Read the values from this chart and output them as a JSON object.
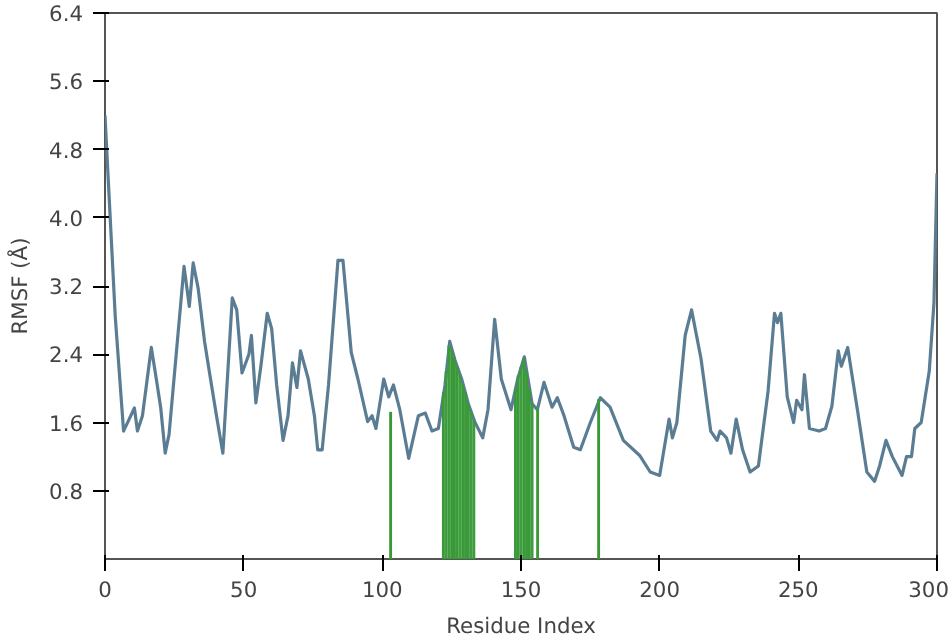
{
  "chart_data": {
    "type": "line",
    "xlabel": "Residue Index",
    "ylabel": "RMSF (Å)",
    "xlim": [
      0,
      300
    ],
    "ylim": [
      0,
      6.4
    ],
    "xticks": [
      0,
      50,
      100,
      150,
      200,
      250,
      300
    ],
    "yticks": [
      0.8,
      1.6,
      2.4,
      3.2,
      {
        "value": 4,
        "label": "4.0"
      },
      4.8,
      5.6,
      6.4
    ],
    "grid": false,
    "series": [
      {
        "color": "#5a7d94",
        "x": [
          0,
          1.4,
          3.7,
          6.7,
          8.3,
          10.6,
          11.7,
          13.5,
          16.7,
          18.5,
          20.1,
          21.7,
          23.1,
          28.5,
          30.4,
          31.8,
          33.6,
          35.9,
          37.7,
          40.2,
          42.5,
          45.9,
          47.5,
          49.4,
          51.9,
          52.8,
          54.4,
          56.2,
          58.5,
          60.1,
          61.9,
          64.2,
          66,
          67.6,
          69.2,
          70.5,
          73.3,
          75.5,
          76.7,
          78.3,
          80.6,
          84,
          85.8,
          88.8,
          91.2,
          94.7,
          96.3,
          97.7,
          100.5,
          102.3,
          104,
          106.3,
          109.5,
          113,
          115.5,
          117.9,
          120.2,
          122.6,
          124.3,
          126.2,
          128.6,
          131,
          133.3,
          136.2,
          138.1,
          140.5,
          142.9,
          146.4,
          148.8,
          151.2,
          154,
          155.9,
          158.3,
          161.2,
          163.1,
          165.5,
          169,
          171.4,
          175,
          178.6,
          182.1,
          186.9,
          192.9,
          196.6,
          200,
          203.4,
          204.6,
          206.2,
          209.2,
          211.5,
          214.9,
          218.4,
          220.7,
          221.8,
          224.1,
          225.7,
          227.6,
          229.9,
          232.6,
          235.6,
          239.1,
          241.4,
          242.5,
          243.7,
          246,
          248.3,
          249.4,
          251.3,
          252.2,
          254,
          257.5,
          259.8,
          262.1,
          264.4,
          265.5,
          267.8,
          271.3,
          274.7,
          277.5,
          279.3,
          281.6,
          283.9,
          287.4,
          289,
          290.8,
          292,
          294.3,
          297.2,
          298.9,
          300
        ],
        "values": [
          5.2,
          4.3,
          2.84,
          1.5,
          1.61,
          1.77,
          1.5,
          1.68,
          2.48,
          2.11,
          1.77,
          1.24,
          1.46,
          3.43,
          2.96,
          3.47,
          3.17,
          2.55,
          2.18,
          1.68,
          1.24,
          3.06,
          2.92,
          2.18,
          2.4,
          2.62,
          1.83,
          2.26,
          2.88,
          2.7,
          2.04,
          1.39,
          1.68,
          2.3,
          2.01,
          2.44,
          2.11,
          1.68,
          1.28,
          1.28,
          2.04,
          3.5,
          3.5,
          2.42,
          2.11,
          1.61,
          1.68,
          1.53,
          2.11,
          1.9,
          2.04,
          1.75,
          1.18,
          1.68,
          1.71,
          1.5,
          1.53,
          2.04,
          2.55,
          2.33,
          2.11,
          1.82,
          1.61,
          1.42,
          1.75,
          2.81,
          2.11,
          1.75,
          2.11,
          2.37,
          1.82,
          1.75,
          2.07,
          1.78,
          1.89,
          1.68,
          1.31,
          1.28,
          1.6,
          1.89,
          1.78,
          1.39,
          1.21,
          1.02,
          0.98,
          1.64,
          1.42,
          1.6,
          2.62,
          2.92,
          2.35,
          1.5,
          1.39,
          1.5,
          1.42,
          1.24,
          1.64,
          1.28,
          1.02,
          1.09,
          1.97,
          2.88,
          2.77,
          2.88,
          1.9,
          1.6,
          1.86,
          1.75,
          2.16,
          1.53,
          1.5,
          1.53,
          1.79,
          2.44,
          2.26,
          2.48,
          1.75,
          1.02,
          0.91,
          1.09,
          1.39,
          1.2,
          0.98,
          1.2,
          1.2,
          1.53,
          1.6,
          2.2,
          3.0,
          4.52
        ]
      },
      {
        "type": "bar",
        "color": "#3a9a3a",
        "x": [
          103,
          122,
          123,
          124,
          125,
          126,
          127,
          128,
          129,
          130,
          131,
          132,
          133,
          148,
          149,
          150,
          151,
          152,
          153,
          154,
          156,
          178
        ],
        "values": [
          1.72,
          1.95,
          2.2,
          2.5,
          2.45,
          2.35,
          2.25,
          2.15,
          2.05,
          1.95,
          1.82,
          1.72,
          1.62,
          2.0,
          2.15,
          2.25,
          2.35,
          2.2,
          2.0,
          1.82,
          1.76,
          1.87
        ]
      }
    ]
  }
}
